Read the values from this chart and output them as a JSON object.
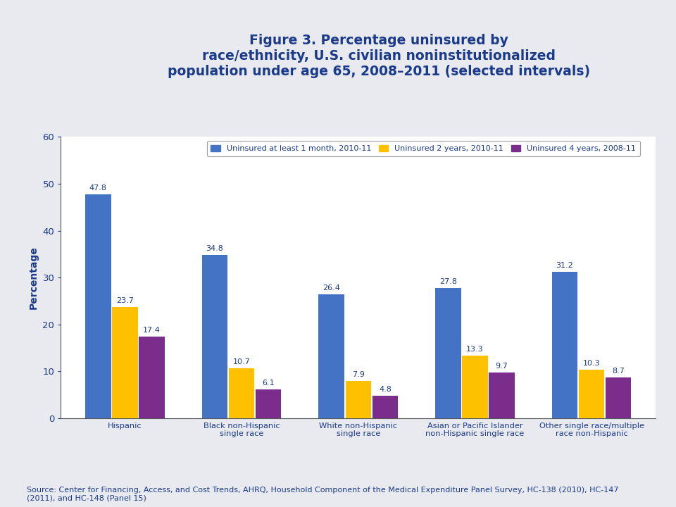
{
  "title": "Figure 3. Percentage uninsured by\nrace/ethnicity, U.S. civilian noninstitutionalized\npopulation under age 65, 2008–2011 (selected intervals)",
  "title_color": "#1a3a8a",
  "title_fontsize": 13.5,
  "ylabel": "Percentage",
  "ylabel_color": "#1a3a8a",
  "ylabel_fontsize": 10,
  "categories": [
    "Hispanic",
    "Black non-Hispanic\nsingle race",
    "White non-Hispanic\nsingle race",
    "Asian or Pacific Islander\nnon-Hispanic single race",
    "Other single race/multiple\nrace non-Hispanic"
  ],
  "series": [
    {
      "label": "Uninsured at least 1 month, 2010-11",
      "color": "#4472C4",
      "values": [
        47.8,
        34.8,
        26.4,
        27.8,
        31.2
      ]
    },
    {
      "label": "Uninsured 2 years, 2010-11",
      "color": "#FFC000",
      "values": [
        23.7,
        10.7,
        7.9,
        13.3,
        10.3
      ]
    },
    {
      "label": "Uninsured 4 years, 2008-11",
      "color": "#7B2D8B",
      "values": [
        17.4,
        6.1,
        4.8,
        9.7,
        8.7
      ]
    }
  ],
  "ylim": [
    0,
    60
  ],
  "yticks": [
    0,
    10,
    20,
    30,
    40,
    50,
    60
  ],
  "fig_bg_color": "#E8EAF0",
  "header_bg_color": "#C8CEDC",
  "plot_area_bg": "#FFFFFF",
  "divider_color": "#8899AA",
  "source_text": "Source: Center for Financing, Access, and Cost Trends, AHRQ, Household Component of the Medical Expenditure Panel Survey, HC-138 (2010), HC-147\n(2011), and HC-148 (Panel 15)",
  "source_fontsize": 8,
  "source_color": "#1a3a8a",
  "bar_value_fontsize": 8,
  "bar_value_color": "#1a3a8a",
  "tick_label_color": "#1a3a8a",
  "legend_fontsize": 8,
  "legend_edge_color": "#888888"
}
